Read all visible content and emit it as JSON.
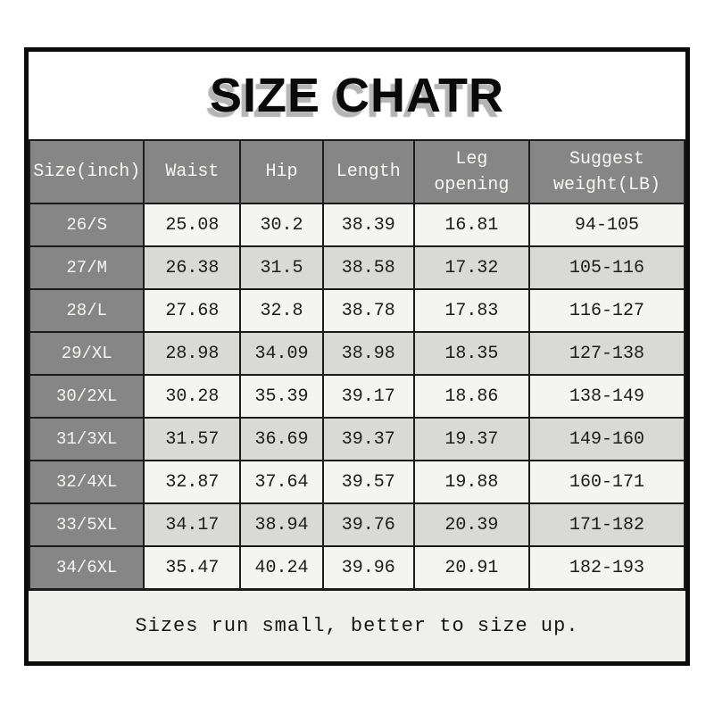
{
  "title": "SIZE CHATR",
  "footer": {
    "note": "Sizes run small, better to size up."
  },
  "colors": {
    "header_bg": "#868686",
    "header_text": "#f6f6f4",
    "row_odd_bg": "#f4f4f2",
    "row_even_bg": "#d9d9d7",
    "footer_bg": "#efefed",
    "border": "#1b1b1b",
    "title_shadow": "#b5b5b5"
  },
  "chart_data": {
    "type": "table",
    "title": "SIZE CHATR",
    "columns": [
      "Size(inch)",
      "Waist",
      "Hip",
      "Length",
      "Leg opening",
      "Suggest weight(LB)"
    ],
    "rows": [
      [
        "26/S",
        "25.08",
        "30.2",
        "38.39",
        "16.81",
        "94-105"
      ],
      [
        "27/M",
        "26.38",
        "31.5",
        "38.58",
        "17.32",
        "105-116"
      ],
      [
        "28/L",
        "27.68",
        "32.8",
        "38.78",
        "17.83",
        "116-127"
      ],
      [
        "29/XL",
        "28.98",
        "34.09",
        "38.98",
        "18.35",
        "127-138"
      ],
      [
        "30/2XL",
        "30.28",
        "35.39",
        "39.17",
        "18.86",
        "138-149"
      ],
      [
        "31/3XL",
        "31.57",
        "36.69",
        "39.37",
        "19.37",
        "149-160"
      ],
      [
        "32/4XL",
        "32.87",
        "37.64",
        "39.57",
        "19.88",
        "160-171"
      ],
      [
        "33/5XL",
        "34.17",
        "38.94",
        "39.76",
        "20.39",
        "171-182"
      ],
      [
        "34/6XL",
        "35.47",
        "40.24",
        "39.96",
        "20.91",
        "182-193"
      ]
    ],
    "footnote": "Sizes run small, better to size up.",
    "column_widths_pct": [
      17.5,
      14.7,
      12.6,
      13.9,
      17.6,
      23.7
    ]
  }
}
